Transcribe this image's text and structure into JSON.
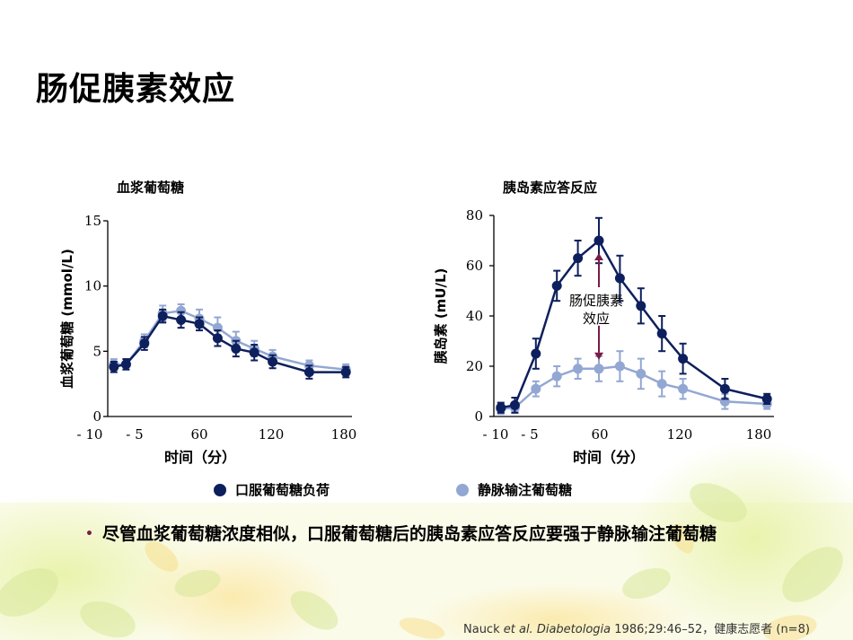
{
  "slide": {
    "title": "肠促胰素效应",
    "bullet": "尽管血浆葡萄糖浓度相似，口服葡萄糖后的胰岛素应答反应要强于静脉输注葡萄糖",
    "citation_prefix": "Nauck ",
    "citation_etal": "et al.",
    "citation_journal": "Diabetologia",
    "citation_rest": " 1986;29:46–52，健康志愿者 (n=8)"
  },
  "legend": {
    "oral_label": "口服葡萄糖负荷",
    "iv_label": "静脉输注葡萄糖"
  },
  "colors": {
    "oral": "#0d1f5c",
    "iv": "#93a7d3",
    "annotation": "#7a1c46"
  },
  "chart_data": [
    {
      "type": "line",
      "title": "血浆葡萄糖",
      "xlabel": "时间（分）",
      "ylabel": "血浆葡萄糖 (mmol/L)",
      "xticks": [
        "- 10",
        "- 5",
        "60",
        "120",
        "180"
      ],
      "yticks": [
        "0",
        "5",
        "10",
        "15"
      ],
      "xlim": [
        -15,
        185
      ],
      "ylim": [
        0,
        15
      ],
      "series": [
        {
          "name": "口服葡萄糖负荷",
          "x": [
            -10,
            0,
            15,
            30,
            45,
            60,
            75,
            90,
            105,
            120,
            150,
            180
          ],
          "y": [
            3.8,
            4.0,
            5.6,
            7.7,
            7.4,
            7.1,
            6.0,
            5.2,
            4.9,
            4.2,
            3.4,
            3.4
          ],
          "err": [
            0.4,
            0.4,
            0.5,
            0.5,
            0.6,
            0.5,
            0.6,
            0.6,
            0.6,
            0.5,
            0.5,
            0.4
          ]
        },
        {
          "name": "静脉输注葡萄糖",
          "x": [
            -10,
            0,
            15,
            30,
            45,
            60,
            75,
            90,
            105,
            120,
            150,
            180
          ],
          "y": [
            4.0,
            4.0,
            5.8,
            7.9,
            8.1,
            7.5,
            6.8,
            5.8,
            5.2,
            4.6,
            3.9,
            3.6
          ],
          "err": [
            0.4,
            0.4,
            0.5,
            0.6,
            0.5,
            0.7,
            0.8,
            0.7,
            0.6,
            0.5,
            0.4,
            0.4
          ]
        }
      ]
    },
    {
      "type": "line",
      "title": "胰岛素应答反应",
      "xlabel": "时间（分）",
      "ylabel": "胰岛素 (mU/L)",
      "xticks": [
        "- 10",
        "- 5",
        "60",
        "120",
        "180"
      ],
      "yticks": [
        "0",
        "20",
        "40",
        "60",
        "80"
      ],
      "xlim": [
        -15,
        185
      ],
      "ylim": [
        0,
        80
      ],
      "annotation": "肠促胰素\n效应",
      "series": [
        {
          "name": "口服葡萄糖负荷",
          "x": [
            -10,
            0,
            15,
            30,
            45,
            60,
            75,
            90,
            105,
            120,
            150,
            180
          ],
          "y": [
            3.5,
            4.5,
            25,
            52,
            63,
            70,
            55,
            44,
            33,
            23,
            11,
            7
          ],
          "err": [
            2,
            3,
            6,
            6,
            7,
            9,
            9,
            7,
            7,
            6,
            4,
            2
          ]
        },
        {
          "name": "静脉输注葡萄糖",
          "x": [
            -10,
            0,
            15,
            30,
            45,
            60,
            75,
            90,
            105,
            120,
            150,
            180
          ],
          "y": [
            3.0,
            3.5,
            11,
            16,
            19,
            19,
            20,
            17,
            13,
            11,
            6,
            5
          ],
          "err": [
            2,
            2,
            3,
            4,
            4,
            5,
            6,
            6,
            5,
            4,
            3,
            2
          ]
        }
      ]
    }
  ]
}
